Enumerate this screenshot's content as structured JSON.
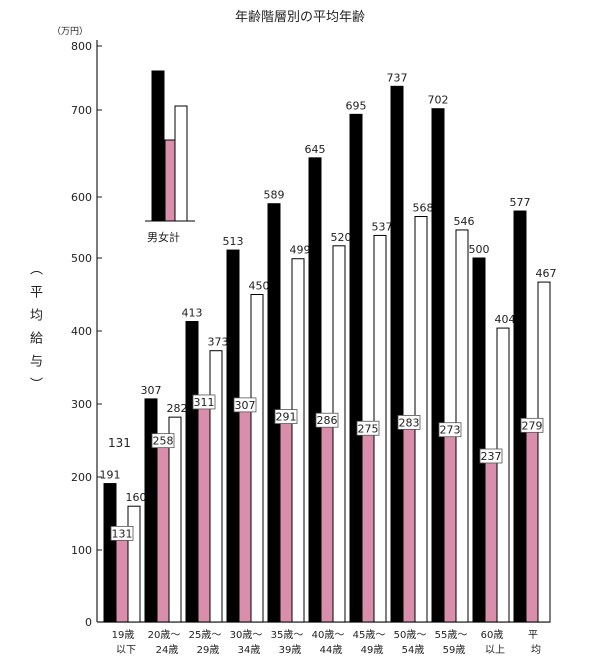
{
  "chart_data": {
    "type": "bar",
    "title": "年齢階層別の平均年齢",
    "unit": "（万円）",
    "ylabel": "（平均給与）",
    "ylim": [
      0,
      800
    ],
    "yticks": [
      0,
      100,
      200,
      300,
      400,
      500,
      600,
      700,
      800
    ],
    "grid": false,
    "categories": [
      [
        "19歳",
        "以下"
      ],
      [
        "20歳～",
        "24歳"
      ],
      [
        "25歳～",
        "29歳"
      ],
      [
        "30歳～",
        "34歳"
      ],
      [
        "35歳～",
        "39歳"
      ],
      [
        "40歳～",
        "44歳"
      ],
      [
        "45歳～",
        "49歳"
      ],
      [
        "50歳～",
        "54歳"
      ],
      [
        "55歳～",
        "59歳"
      ],
      [
        "60歳",
        "以上"
      ],
      [
        "平",
        "均"
      ]
    ],
    "series": [
      {
        "color": "#000000",
        "values": [
          191,
          307,
          413,
          513,
          589,
          645,
          695,
          737,
          702,
          500,
          577
        ]
      },
      {
        "color": "#d98fab",
        "values": [
          131,
          258,
          311,
          307,
          291,
          286,
          275,
          283,
          273,
          237,
          279
        ]
      },
      {
        "color": "#ffffff",
        "values": [
          160,
          282,
          373,
          450,
          499,
          520,
          537,
          568,
          546,
          404,
          467
        ]
      }
    ],
    "annotations": [
      "131"
    ],
    "legend": {
      "label": "男女計",
      "placement": "top-left"
    }
  }
}
